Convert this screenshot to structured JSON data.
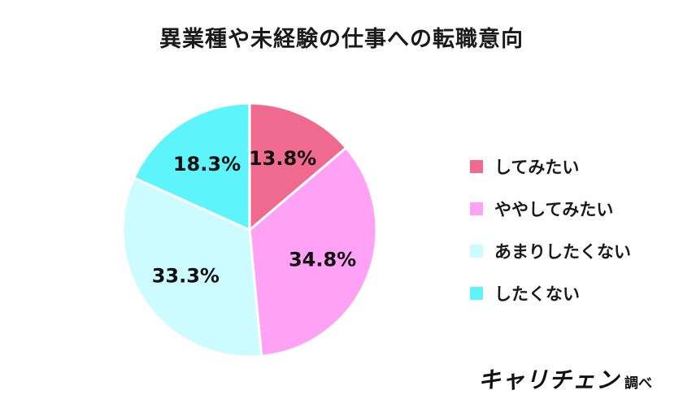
{
  "chart_data": {
    "type": "pie",
    "title": "異業種や未経験の仕事への転職意向",
    "categories": [
      "してみたい",
      "ややしてみたい",
      "あまりしたくない",
      "したくない"
    ],
    "values": [
      13.8,
      34.8,
      33.3,
      18.3
    ],
    "labels": [
      "13.8%",
      "34.8%",
      "33.3%",
      "18.3%"
    ],
    "colors": [
      "#f06a90",
      "#ffa1f4",
      "#ccfcff",
      "#5ef4fb"
    ],
    "legend": "right",
    "start": "12 o'clock, clockwise"
  },
  "brand": {
    "logo": "キャリチェン",
    "suffix": "調べ"
  }
}
